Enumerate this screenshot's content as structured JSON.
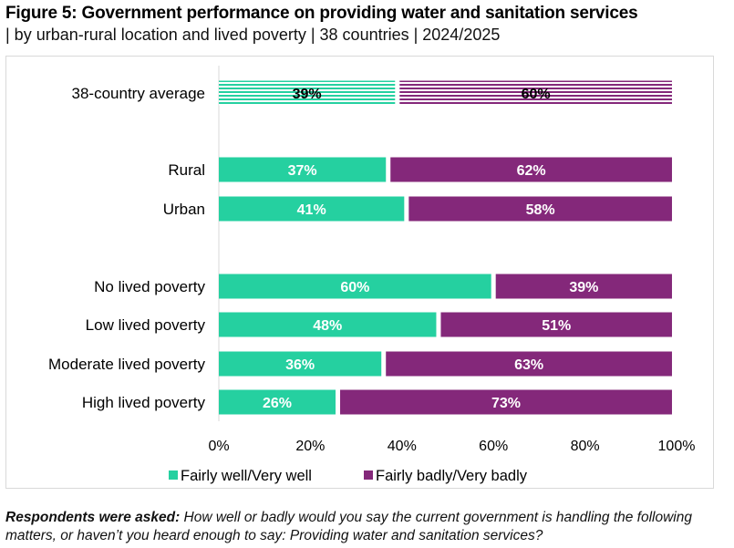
{
  "header": {
    "title": "Figure 5: Government performance on providing water and sanitation services",
    "subtitle": "| by urban-rural location and lived poverty | 38 countries | 2024/2025"
  },
  "chart_data": {
    "type": "bar",
    "orientation": "horizontal",
    "stacked": true,
    "categories": [
      "38-country average",
      "Rural",
      "Urban",
      "No lived poverty",
      "Low lived poverty",
      "Moderate lived poverty",
      "High lived poverty"
    ],
    "series": [
      {
        "name": "Fairly well/Very well",
        "color": "#25d0a0",
        "values": [
          39,
          37,
          41,
          60,
          48,
          36,
          26
        ],
        "labels": [
          "39%",
          "37%",
          "41%",
          "60%",
          "48%",
          "36%",
          "26%"
        ]
      },
      {
        "name": "Fairly badly/Very badly",
        "color": "#84287a",
        "values": [
          60,
          62,
          58,
          39,
          51,
          63,
          73
        ],
        "labels": [
          "60%",
          "62%",
          "58%",
          "39%",
          "51%",
          "63%",
          "73%"
        ]
      }
    ],
    "striped_categories": [
      "38-country average"
    ],
    "xlim": [
      0,
      100
    ],
    "xticks": [
      "0%",
      "20%",
      "40%",
      "60%",
      "80%",
      "100%"
    ],
    "xlabel": "",
    "ylabel": "",
    "grid": false,
    "legend": {
      "position": "bottom",
      "entries": [
        "Fairly well/Very well",
        "Fairly badly/Very badly"
      ]
    }
  },
  "footnote": {
    "lead": "Respondents were asked:",
    "text": " How well or badly would you say the current government is handling the following matters, or haven’t you heard enough to say: Providing water and sanitation services?"
  }
}
